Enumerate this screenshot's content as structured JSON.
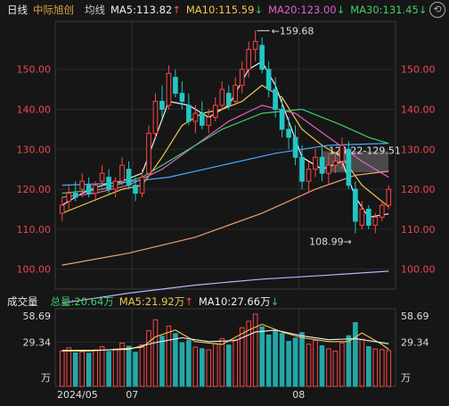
{
  "header": {
    "tab_daily": "日线",
    "stock_name": "中际旭创",
    "indicator": "均线",
    "ma5": "MA5:113.82",
    "ma10": "MA10:115.59",
    "ma20": "MA20:123.00",
    "ma30": "MA30:131.45",
    "arrow_up": "↑",
    "arrow_down": "↓"
  },
  "volume_header": {
    "title": "成交量",
    "total": "总量:20.64万",
    "ma5": "MA5:21.92万",
    "ma10": "MA10:27.66万"
  },
  "chart_data": {
    "type": "candlestick",
    "price_axis_ticks": [
      100,
      110,
      120,
      130,
      140,
      150
    ],
    "price_axis_labels": [
      "100.00",
      "110.00",
      "120.00",
      "130.00",
      "140.00",
      "150.00"
    ],
    "ylim": [
      95,
      162
    ],
    "annotations": {
      "high": "159.68",
      "low": "108.99",
      "range_box": "124.22-129.51"
    },
    "volume_axis_labels": [
      "58.69",
      "29.34",
      "万"
    ],
    "volume_ylim": [
      0,
      58.69
    ],
    "x_labels": [
      "2024/05",
      "07",
      "08"
    ],
    "candles": [
      {
        "o": 114,
        "h": 118,
        "l": 112,
        "c": 116
      },
      {
        "o": 117,
        "h": 121,
        "l": 115,
        "c": 119
      },
      {
        "o": 119,
        "h": 122,
        "l": 117,
        "c": 118
      },
      {
        "o": 120,
        "h": 124,
        "l": 118,
        "c": 122
      },
      {
        "o": 121,
        "h": 123,
        "l": 118,
        "c": 119
      },
      {
        "o": 119,
        "h": 122,
        "l": 117,
        "c": 121
      },
      {
        "o": 122,
        "h": 126,
        "l": 120,
        "c": 124
      },
      {
        "o": 123,
        "h": 125,
        "l": 119,
        "c": 120
      },
      {
        "o": 120,
        "h": 123,
        "l": 118,
        "c": 122
      },
      {
        "o": 122,
        "h": 128,
        "l": 121,
        "c": 126
      },
      {
        "o": 125,
        "h": 127,
        "l": 120,
        "c": 121
      },
      {
        "o": 121,
        "h": 123,
        "l": 117,
        "c": 119
      },
      {
        "o": 119,
        "h": 125,
        "l": 118,
        "c": 123
      },
      {
        "o": 124,
        "h": 136,
        "l": 123,
        "c": 134
      },
      {
        "o": 134,
        "h": 144,
        "l": 133,
        "c": 142
      },
      {
        "o": 142,
        "h": 146,
        "l": 138,
        "c": 140
      },
      {
        "o": 141,
        "h": 151,
        "l": 140,
        "c": 149
      },
      {
        "o": 148,
        "h": 150,
        "l": 143,
        "c": 144
      },
      {
        "o": 144,
        "h": 147,
        "l": 140,
        "c": 142
      },
      {
        "o": 141,
        "h": 144,
        "l": 136,
        "c": 137
      },
      {
        "o": 137,
        "h": 141,
        "l": 134,
        "c": 139
      },
      {
        "o": 139,
        "h": 142,
        "l": 135,
        "c": 136
      },
      {
        "o": 136,
        "h": 140,
        "l": 134,
        "c": 138
      },
      {
        "o": 138,
        "h": 143,
        "l": 137,
        "c": 141
      },
      {
        "o": 141,
        "h": 147,
        "l": 140,
        "c": 145
      },
      {
        "o": 144,
        "h": 146,
        "l": 140,
        "c": 141
      },
      {
        "o": 142,
        "h": 148,
        "l": 141,
        "c": 146
      },
      {
        "o": 146,
        "h": 152,
        "l": 144,
        "c": 150
      },
      {
        "o": 150,
        "h": 157,
        "l": 148,
        "c": 155
      },
      {
        "o": 155,
        "h": 159.68,
        "l": 152,
        "c": 157
      },
      {
        "o": 156,
        "h": 158,
        "l": 149,
        "c": 150
      },
      {
        "o": 150,
        "h": 152,
        "l": 143,
        "c": 145
      },
      {
        "o": 145,
        "h": 148,
        "l": 138,
        "c": 140
      },
      {
        "o": 140,
        "h": 143,
        "l": 133,
        "c": 135
      },
      {
        "o": 135,
        "h": 138,
        "l": 130,
        "c": 133
      },
      {
        "o": 133,
        "h": 136,
        "l": 126,
        "c": 128
      },
      {
        "o": 128,
        "h": 131,
        "l": 120,
        "c": 122
      },
      {
        "o": 122,
        "h": 127,
        "l": 119,
        "c": 125
      },
      {
        "o": 125,
        "h": 130,
        "l": 123,
        "c": 128
      },
      {
        "o": 128,
        "h": 131,
        "l": 122,
        "c": 124
      },
      {
        "o": 124,
        "h": 129,
        "l": 121,
        "c": 126
      },
      {
        "o": 126,
        "h": 129,
        "l": 124,
        "c": 127
      },
      {
        "o": 127,
        "h": 133,
        "l": 125,
        "c": 131
      },
      {
        "o": 130,
        "h": 132,
        "l": 120,
        "c": 121
      },
      {
        "o": 120,
        "h": 122,
        "l": 108.99,
        "c": 112
      },
      {
        "o": 111,
        "h": 117,
        "l": 110,
        "c": 115
      },
      {
        "o": 115,
        "h": 116,
        "l": 110,
        "c": 111
      },
      {
        "o": 111,
        "h": 114,
        "l": 109,
        "c": 113
      },
      {
        "o": 113,
        "h": 117,
        "l": 112,
        "c": 116
      },
      {
        "o": 116,
        "h": 121,
        "l": 115,
        "c": 120
      }
    ],
    "volumes": [
      20.1,
      23.5,
      18.2,
      19.4,
      17.8,
      21.3,
      24.6,
      19.7,
      22.1,
      28.4,
      25.2,
      18.9,
      26.7,
      41.3,
      52.8,
      35.6,
      46.2,
      38.4,
      28.7,
      31.5,
      24.3,
      22.6,
      21.4,
      27.8,
      33.1,
      26.4,
      31.7,
      44.5,
      51.2,
      58.69,
      45.3,
      36.8,
      41.2,
      38.5,
      30.2,
      33.6,
      39.4,
      27.3,
      31.2,
      25.6,
      22.4,
      20.1,
      28.6,
      36.2,
      49.8,
      32.4,
      24.7,
      22.3,
      21.6,
      20.64
    ],
    "ma_series": [
      {
        "name": "MA5",
        "color": "#f0f0f0",
        "points": [
          [
            0,
            116
          ],
          [
            3,
            119
          ],
          [
            6,
            121
          ],
          [
            9,
            122
          ],
          [
            12,
            124
          ],
          [
            14,
            133
          ],
          [
            16,
            142
          ],
          [
            19,
            141
          ],
          [
            22,
            138
          ],
          [
            25,
            141
          ],
          [
            28,
            150
          ],
          [
            30,
            152
          ],
          [
            32,
            146
          ],
          [
            34,
            137
          ],
          [
            36,
            128
          ],
          [
            39,
            125
          ],
          [
            42,
            127
          ],
          [
            44,
            118
          ],
          [
            46,
            113
          ],
          [
            49,
            113.82
          ]
        ]
      },
      {
        "name": "MA10",
        "color": "#f2c94c",
        "points": [
          [
            0,
            114
          ],
          [
            3,
            116
          ],
          [
            6,
            118
          ],
          [
            9,
            120
          ],
          [
            12,
            121
          ],
          [
            15,
            128
          ],
          [
            18,
            136
          ],
          [
            21,
            139
          ],
          [
            24,
            140
          ],
          [
            27,
            142
          ],
          [
            30,
            146
          ],
          [
            33,
            143
          ],
          [
            36,
            135
          ],
          [
            39,
            131
          ],
          [
            42,
            128
          ],
          [
            45,
            121
          ],
          [
            49,
            115.59
          ]
        ]
      },
      {
        "name": "MA20",
        "color": "#e060c8",
        "points": [
          [
            0,
            118
          ],
          [
            5,
            119
          ],
          [
            10,
            121
          ],
          [
            15,
            125
          ],
          [
            20,
            131
          ],
          [
            25,
            137
          ],
          [
            30,
            141
          ],
          [
            35,
            139
          ],
          [
            40,
            133
          ],
          [
            45,
            127
          ],
          [
            49,
            123
          ]
        ]
      },
      {
        "name": "MA30",
        "color": "#3fcf6a",
        "points": [
          [
            0,
            119
          ],
          [
            6,
            120
          ],
          [
            12,
            123
          ],
          [
            18,
            129
          ],
          [
            24,
            135
          ],
          [
            30,
            139
          ],
          [
            36,
            140
          ],
          [
            42,
            136
          ],
          [
            46,
            133
          ],
          [
            49,
            131.45
          ]
        ]
      },
      {
        "name": "MA60",
        "color": "#4aa8ff",
        "points": [
          [
            0,
            121
          ],
          [
            8,
            121.5
          ],
          [
            16,
            123
          ],
          [
            24,
            126
          ],
          [
            32,
            129
          ],
          [
            40,
            131
          ],
          [
            49,
            131.5
          ]
        ]
      },
      {
        "name": "MA120",
        "color": "#e8a070",
        "points": [
          [
            0,
            101
          ],
          [
            10,
            104
          ],
          [
            20,
            108
          ],
          [
            30,
            114
          ],
          [
            38,
            120
          ],
          [
            44,
            123.5
          ],
          [
            49,
            124.5
          ]
        ]
      },
      {
        "name": "MA250",
        "color": "#b9b3ff",
        "points": [
          [
            0,
            91.5
          ],
          [
            10,
            94
          ],
          [
            20,
            96
          ],
          [
            30,
            97.5
          ],
          [
            40,
            98.5
          ],
          [
            49,
            99.5
          ]
        ]
      }
    ],
    "vol_ma_series": [
      {
        "name": "MA5",
        "color": "#f2c94c",
        "points": [
          [
            0,
            20
          ],
          [
            4,
            20
          ],
          [
            8,
            22
          ],
          [
            12,
            24
          ],
          [
            14,
            35
          ],
          [
            17,
            42
          ],
          [
            20,
            30
          ],
          [
            24,
            27
          ],
          [
            28,
            42
          ],
          [
            30,
            48
          ],
          [
            33,
            40
          ],
          [
            36,
            34
          ],
          [
            40,
            30
          ],
          [
            43,
            30
          ],
          [
            45,
            39
          ],
          [
            48,
            27
          ],
          [
            49,
            21.92
          ]
        ]
      },
      {
        "name": "MA10",
        "color": "#f0f0f0",
        "points": [
          [
            0,
            21
          ],
          [
            5,
            21
          ],
          [
            10,
            22
          ],
          [
            14,
            29
          ],
          [
            18,
            34
          ],
          [
            22,
            30
          ],
          [
            26,
            31
          ],
          [
            29,
            40
          ],
          [
            32,
            42
          ],
          [
            36,
            36
          ],
          [
            40,
            32
          ],
          [
            44,
            33
          ],
          [
            47,
            30
          ],
          [
            49,
            27.66
          ]
        ]
      }
    ]
  }
}
